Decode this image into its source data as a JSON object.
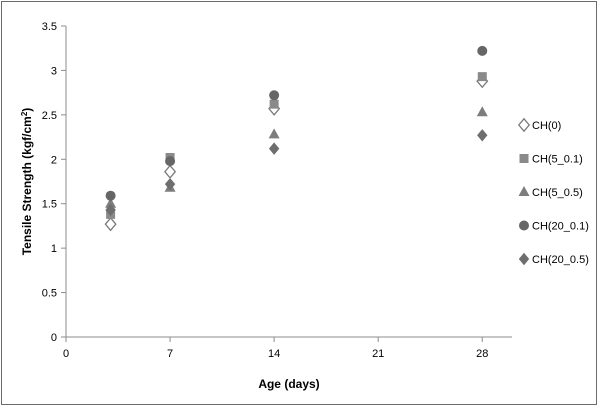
{
  "chart_data": {
    "type": "scatter",
    "title": "",
    "xlabel": "Age (days)",
    "ylabel_main": "Tensile  Strength  (kgf/cm",
    "ylabel_sup": "2",
    "ylabel_end": ")",
    "xlim": [
      0,
      30
    ],
    "ylim": [
      0,
      3.5
    ],
    "xticks": [
      0,
      7,
      14,
      21,
      28
    ],
    "xtick_labels": [
      "0",
      "7",
      "14",
      "21",
      "28"
    ],
    "yticks": [
      0,
      0.5,
      1,
      1.5,
      2,
      2.5,
      3,
      3.5
    ],
    "ytick_labels": [
      "0",
      "0.5",
      "1",
      "1.5",
      "2",
      "2.5",
      "3",
      "3.5"
    ],
    "grid": false,
    "legend_position": "right",
    "series": [
      {
        "name": "CH(0)",
        "marker": "diamond-open",
        "color": "#7a7a7a",
        "x": [
          3,
          7,
          14,
          28
        ],
        "y": [
          1.27,
          1.86,
          2.57,
          2.88
        ]
      },
      {
        "name": "CH(5_0.1)",
        "marker": "square",
        "color": "#8a8a8a",
        "x": [
          3,
          7,
          14,
          28
        ],
        "y": [
          1.38,
          2.02,
          2.62,
          2.93
        ]
      },
      {
        "name": "CH(5_0.5)",
        "marker": "triangle",
        "color": "#7d7d7d",
        "x": [
          3,
          7,
          14,
          28
        ],
        "y": [
          1.5,
          1.68,
          2.28,
          2.53
        ]
      },
      {
        "name": "CH(20_0.1)",
        "marker": "circle",
        "color": "#666666",
        "x": [
          3,
          7,
          14,
          28
        ],
        "y": [
          1.59,
          1.98,
          2.72,
          3.22
        ]
      },
      {
        "name": "CH(20_0.5)",
        "marker": "diamond",
        "color": "#6e6e6e",
        "x": [
          3,
          7,
          14,
          28
        ],
        "y": [
          1.43,
          1.72,
          2.12,
          2.27
        ]
      }
    ]
  }
}
